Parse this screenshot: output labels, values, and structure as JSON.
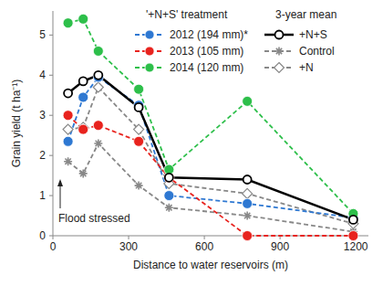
{
  "chart_data": {
    "type": "line",
    "x_label": "Distance to water reservoirs (m)",
    "y_label": "Grain yield  (t ha⁻¹)",
    "annotations": [
      "'+N+S' treatment",
      "3-year mean",
      "Flood stressed"
    ],
    "x": [
      60,
      120,
      180,
      340,
      460,
      770,
      1190
    ],
    "xlim": [
      0,
      1250
    ],
    "xticks": [
      0,
      300,
      600,
      900,
      1200
    ],
    "ylim": [
      0,
      5.6
    ],
    "yticks": [
      0,
      1,
      2,
      3,
      4,
      5
    ],
    "legend": "top-right",
    "series": [
      {
        "name": "2012 (194 mm)*",
        "color": "#2e78d2",
        "line_style": "dashed",
        "marker": "circle",
        "values": [
          2.35,
          3.45,
          3.95,
          3.25,
          1.0,
          0.8,
          0.45
        ]
      },
      {
        "name": "2013 (105 mm)",
        "color": "#e8231e",
        "line_style": "dashed",
        "marker": "circle",
        "values": [
          3.0,
          2.65,
          2.75,
          2.35,
          1.45,
          0,
          0
        ]
      },
      {
        "name": "2014 (120 mm)",
        "color": "#2dbf4a",
        "line_style": "dashed",
        "marker": "circle",
        "values": [
          5.3,
          5.4,
          4.6,
          3.65,
          1.65,
          3.35,
          0.55
        ]
      },
      {
        "name": "+N+S",
        "color": "#000000",
        "line_style": "solid",
        "marker": "open-circle",
        "values": [
          3.55,
          3.85,
          4.0,
          3.2,
          1.45,
          1.4,
          0.4
        ]
      },
      {
        "name": "Control",
        "color": "#888888",
        "line_style": "dashed",
        "marker": "star",
        "values": [
          1.85,
          1.55,
          2.3,
          1.25,
          0.7,
          0.5,
          0.1
        ]
      },
      {
        "name": "+N",
        "color": "#888888",
        "line_style": "dashed",
        "marker": "open-diamond",
        "values": [
          2.65,
          2.7,
          3.7,
          2.65,
          1.3,
          1.05,
          0.3
        ]
      }
    ]
  }
}
